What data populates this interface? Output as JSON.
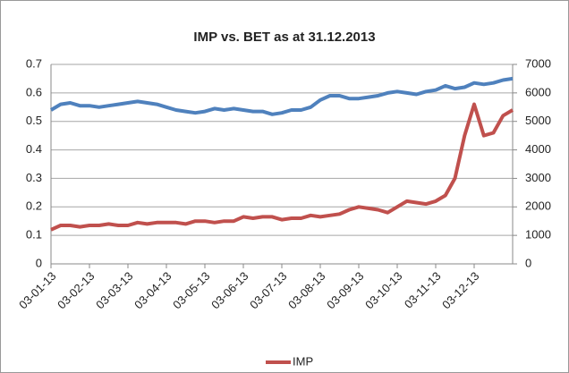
{
  "chart_data": {
    "type": "line",
    "title": "IMP vs. BET as at 31.12.2013",
    "categories": [
      "03-01-13",
      null,
      null,
      null,
      "03-02-13",
      null,
      null,
      null,
      "03-03-13",
      null,
      null,
      null,
      "03-04-13",
      null,
      null,
      null,
      "03-05-13",
      null,
      null,
      null,
      "03-06-13",
      null,
      null,
      null,
      "03-07-13",
      null,
      null,
      null,
      "03-08-13",
      null,
      null,
      null,
      "03-09-13",
      null,
      null,
      null,
      "03-10-13",
      null,
      null,
      null,
      "03-11-13",
      null,
      null,
      null,
      "03-12-13",
      null,
      null,
      null,
      null
    ],
    "series": [
      {
        "name": "IMP",
        "color": "#c0504d",
        "values": [
          0.12,
          0.135,
          0.135,
          0.13,
          0.135,
          0.135,
          0.14,
          0.135,
          0.135,
          0.145,
          0.14,
          0.145,
          0.145,
          0.145,
          0.14,
          0.15,
          0.15,
          0.145,
          0.15,
          0.15,
          0.165,
          0.16,
          0.165,
          0.165,
          0.155,
          0.16,
          0.16,
          0.17,
          0.165,
          0.17,
          0.175,
          0.19,
          0.2,
          0.195,
          0.19,
          0.18,
          0.2,
          0.22,
          0.215,
          0.21,
          0.22,
          0.24,
          0.3,
          0.45,
          0.56,
          0.45,
          0.46,
          0.52,
          0.54
        ]
      },
      {
        "color": "#4f81bd",
        "axis": "y2",
        "values": [
          5400,
          5600,
          5650,
          5550,
          5550,
          5500,
          5550,
          5600,
          5650,
          5700,
          5650,
          5600,
          5500,
          5400,
          5350,
          5300,
          5350,
          5450,
          5400,
          5450,
          5400,
          5350,
          5350,
          5250,
          5300,
          5400,
          5400,
          5500,
          5750,
          5900,
          5900,
          5800,
          5800,
          5850,
          5900,
          6000,
          6050,
          6000,
          5950,
          6050,
          6100,
          6250,
          6150,
          6200,
          6350,
          6300,
          6350,
          6450,
          6500
        ]
      }
    ],
    "ylim": [
      0,
      0.7
    ],
    "yticks": [
      0,
      0.1,
      0.2,
      0.3,
      0.4,
      0.5,
      0.6,
      0.7
    ],
    "y2lim": [
      0,
      7000
    ],
    "y2ticks": [
      0,
      1000,
      2000,
      3000,
      4000,
      5000,
      6000,
      7000
    ],
    "grid": true,
    "legend": "bottom"
  }
}
